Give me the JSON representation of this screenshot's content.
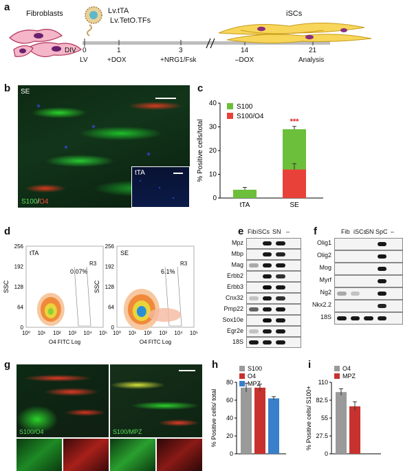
{
  "panels": {
    "a": "a",
    "b": "b",
    "c": "c",
    "d": "d",
    "e": "e",
    "f": "f",
    "g": "g",
    "h": "h",
    "i": "i"
  },
  "panel_a": {
    "fibroblasts": "Fibroblasts",
    "vector1": "Lv.tTA",
    "vector2": "Lv.TetO.TFs",
    "iscs": "iSCs",
    "div": "DIV",
    "timepoints": [
      {
        "day": "0",
        "event": "LV"
      },
      {
        "day": "1",
        "event": "+DOX"
      },
      {
        "day": "3",
        "event": "+NRG1/Fsk"
      },
      {
        "day": "14",
        "event": "–DOX"
      },
      {
        "day": "21",
        "event": "Analysis"
      }
    ]
  },
  "panel_b": {
    "label": "SE",
    "inset_label": "tTA",
    "stain_s100": "S100",
    "stain_sep": "/",
    "stain_o4": "O4"
  },
  "panel_c": {
    "chart_data": {
      "type": "bar",
      "stacked": true,
      "categories": [
        "tTA",
        "SE"
      ],
      "series": [
        {
          "name": "S100",
          "values": [
            3.5,
            29
          ],
          "color": "#6cbf3a"
        },
        {
          "name": "S100/O4",
          "values": [
            0,
            12
          ],
          "color": "#e8413a"
        }
      ],
      "error": [
        1,
        1.2
      ],
      "error_o4": [
        null,
        2.5
      ],
      "ylabel": "% Positive cells/total",
      "ylim": [
        0,
        40
      ],
      "yticks": [
        "0",
        "10",
        "20",
        "30",
        "40"
      ],
      "significance": "***",
      "legend": "top-left",
      "grid": false
    }
  },
  "panel_d": {
    "plots": [
      {
        "label": "tTA",
        "gate": "R3",
        "percent": "0.07%"
      },
      {
        "label": "SE",
        "gate": "R3",
        "percent": "6.1%"
      }
    ],
    "ylabel": "SSC",
    "xlabel": "O4 FITC Log",
    "yticks": [
      "0",
      "64",
      "128",
      "192",
      "256"
    ],
    "xticks": [
      "10⁰",
      "10¹",
      "10²",
      "10³",
      "10⁴",
      "10⁵"
    ]
  },
  "panel_e": {
    "columns": [
      "Fib",
      "iSCs",
      "SN",
      "–"
    ],
    "genes": [
      "Mpz",
      "Mbp",
      "Mag",
      "Erbb2",
      "Erbb3",
      "Cnx32",
      "Pmp22",
      "Sox10e",
      "Egr2e",
      "18S"
    ]
  },
  "panel_f": {
    "columns": [
      "Fib",
      "iSCs",
      "SN",
      "SpC",
      "–"
    ],
    "genes": [
      "Olig1",
      "Olig2",
      "Mog",
      "Myrf",
      "Ng2",
      "Nkx2.2",
      "18S"
    ]
  },
  "panel_g": {
    "left_stain": "S100/O4",
    "right_stain": "S100/MPZ"
  },
  "panel_h": {
    "chart_data": {
      "type": "bar",
      "categories": [
        "S100",
        "O4",
        "MPZ"
      ],
      "values": [
        74,
        74,
        62
      ],
      "errors": [
        5,
        4,
        2
      ],
      "colors": [
        "#9a9a9a",
        "#c8322e",
        "#3a7fc9"
      ],
      "ylabel": "% Positive cells/ total",
      "ylim": [
        0,
        80
      ],
      "yticks": [
        "0",
        "20",
        "40",
        "60",
        "80"
      ],
      "legend": "top-left"
    }
  },
  "panel_i": {
    "chart_data": {
      "type": "bar",
      "categories": [
        "O4",
        "MPZ"
      ],
      "values": [
        95,
        73
      ],
      "errors": [
        5,
        7
      ],
      "colors": [
        "#9a9a9a",
        "#c8322e"
      ],
      "ylabel": "% Positive cells/ S100+",
      "ylim": [
        0,
        110
      ],
      "yticks": [
        "0",
        "27.5",
        "55",
        "82.5",
        "110"
      ],
      "legend": "top-left"
    }
  }
}
